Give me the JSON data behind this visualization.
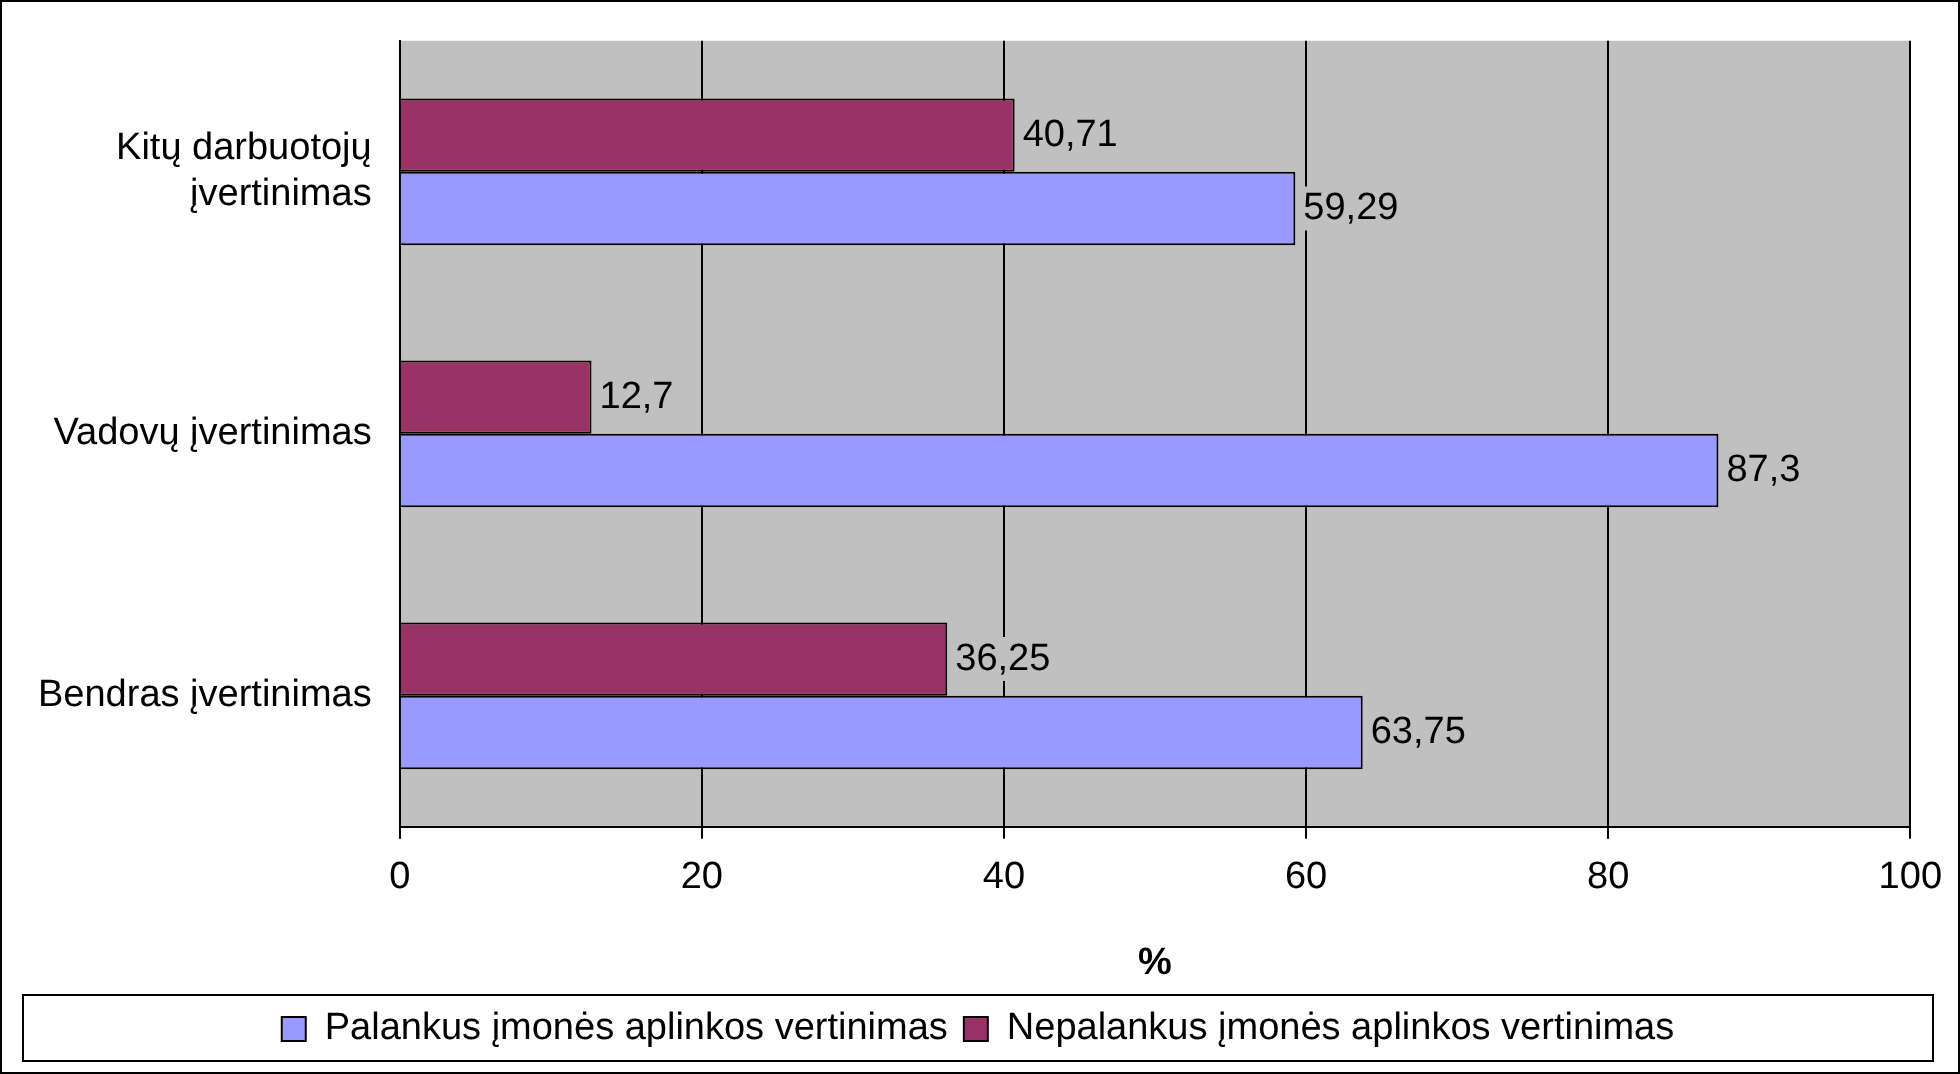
{
  "chart_data": {
    "type": "bar",
    "orientation": "horizontal",
    "xlabel": "%",
    "categories": [
      "Kitų darbuotojų įvertinimas",
      "Vadovų įvertinimas",
      "Bendras įvertinimas"
    ],
    "series": [
      {
        "name": "Palankus įmonės aplinkos vertinimas",
        "color": "#9999ff",
        "values": [
          59.29,
          87.3,
          63.75
        ],
        "value_labels": [
          "59,29",
          "87,3",
          "63,75"
        ]
      },
      {
        "name": "Nepalankus įmonės aplinkos vertinimas",
        "color": "#993366",
        "values": [
          40.71,
          12.7,
          36.25
        ],
        "value_labels": [
          "40,71",
          "12,7",
          "36,25"
        ]
      }
    ],
    "xlim": [
      0,
      100
    ],
    "xticks": [
      0,
      20,
      40,
      60,
      80,
      100
    ],
    "grid": "x",
    "legend": "bottom"
  }
}
